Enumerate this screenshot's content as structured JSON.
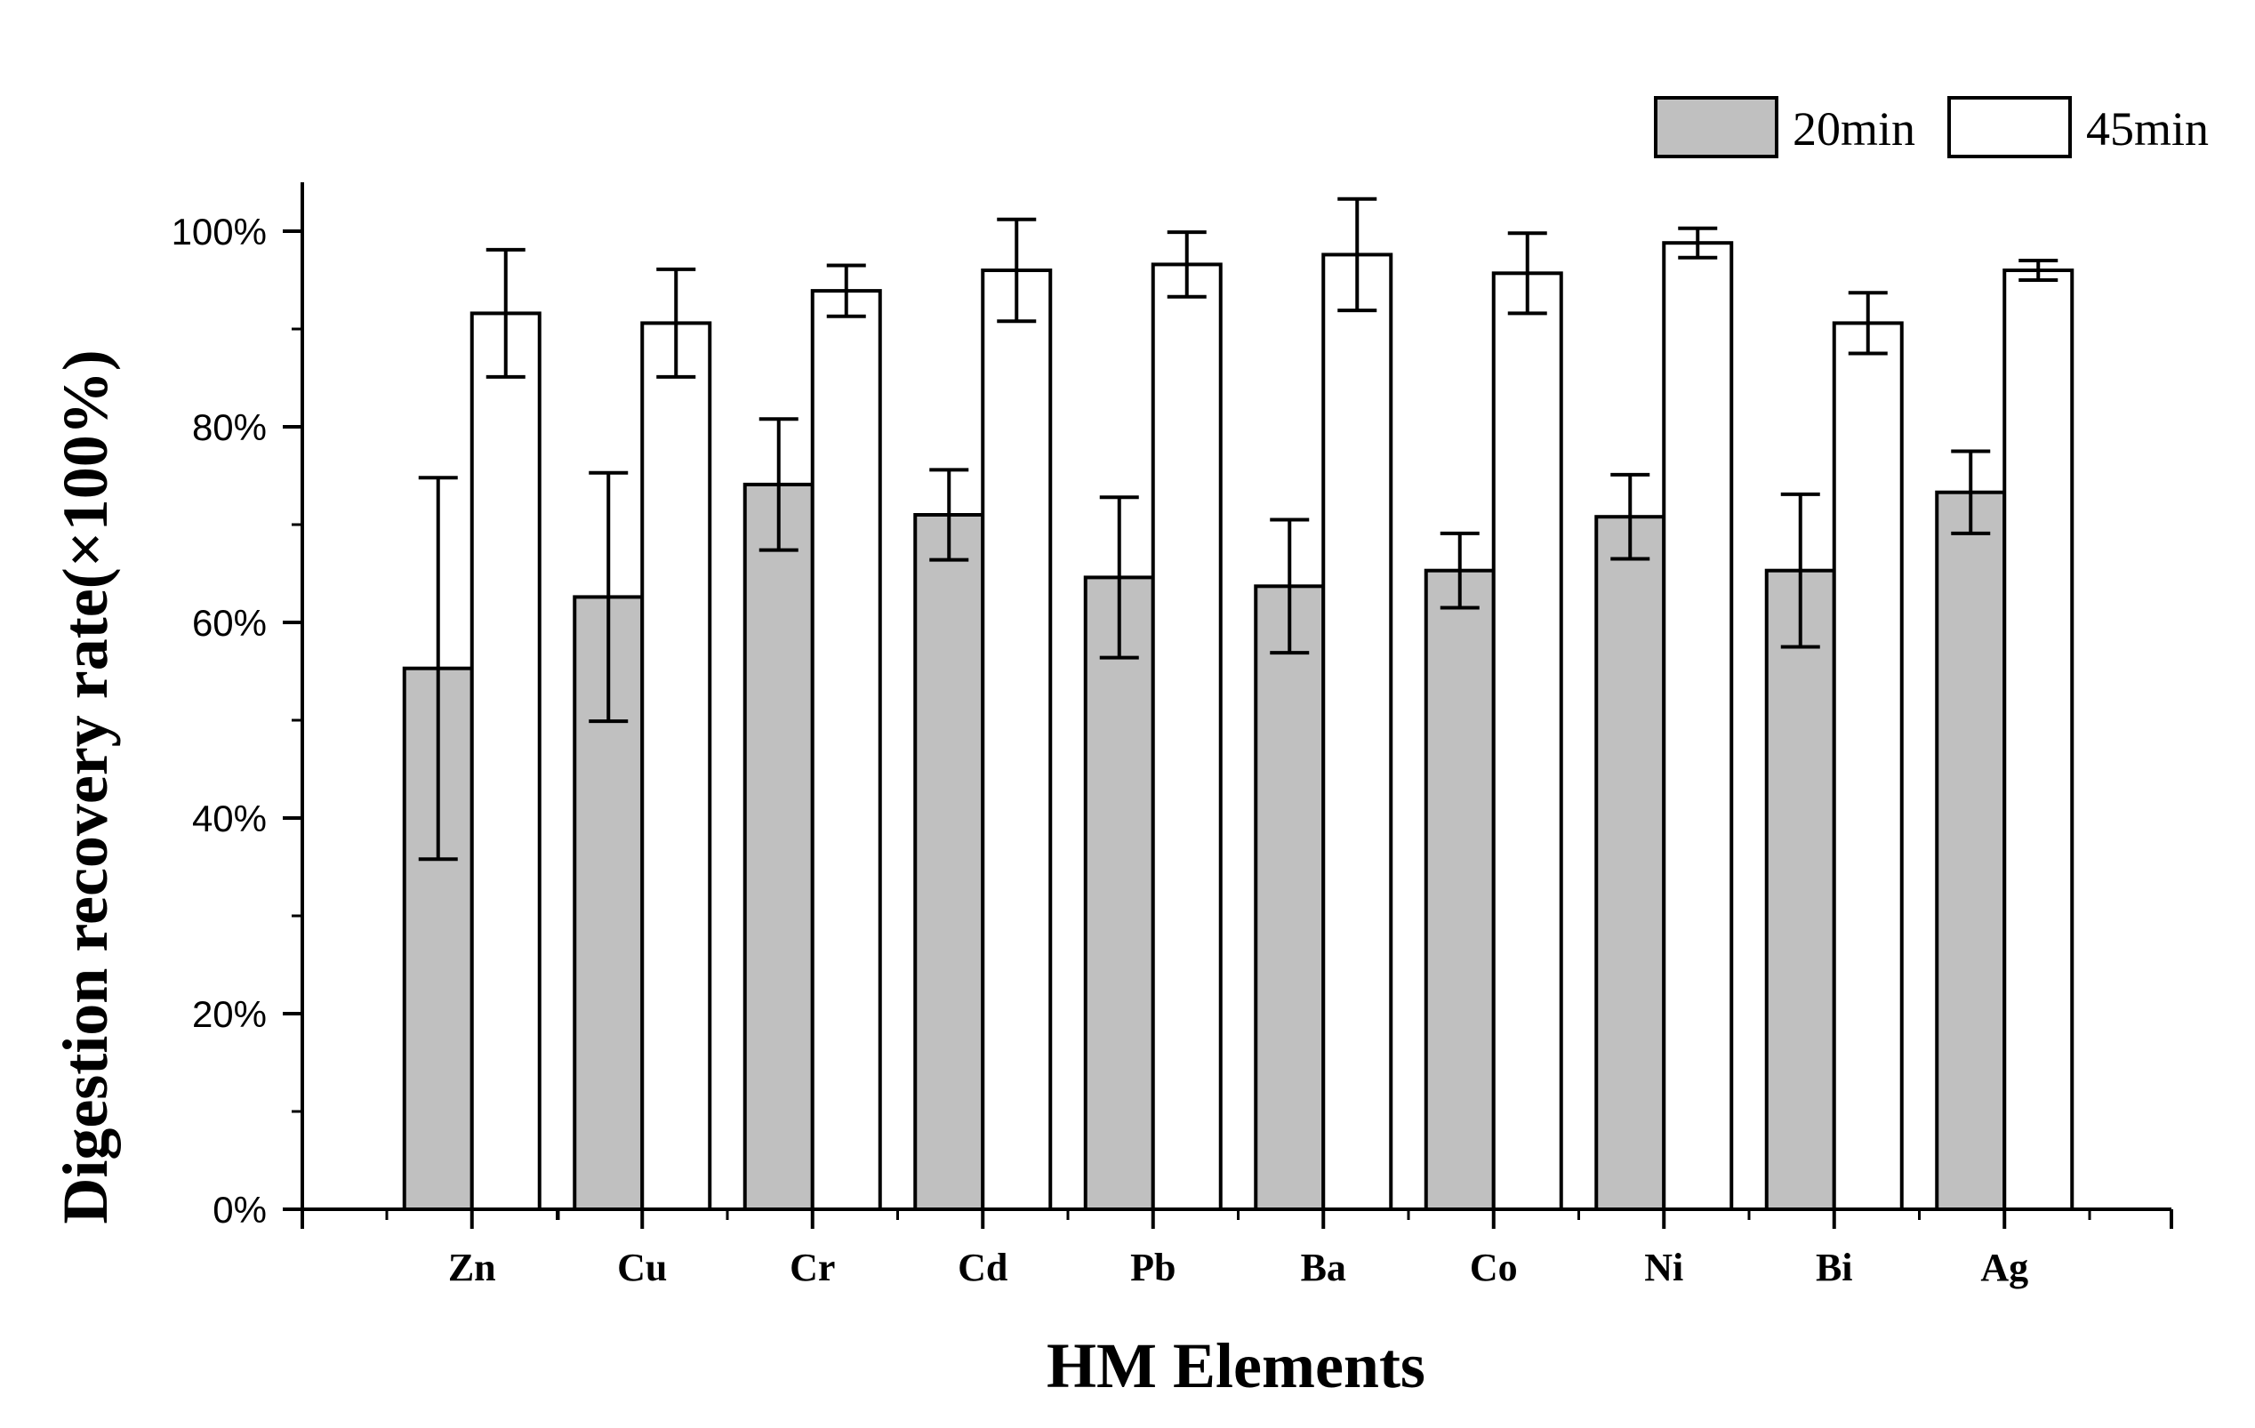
{
  "chart_data": {
    "type": "bar",
    "title": "",
    "xlabel": "HM Elements",
    "ylabel": "Digestion recovery rate(×100%)",
    "ylim": [
      0,
      1.05
    ],
    "y_ticks": [
      0,
      0.2,
      0.4,
      0.6,
      0.8,
      1.0
    ],
    "y_tick_labels": [
      "0%",
      "20%",
      "40%",
      "60%",
      "80%",
      "100%"
    ],
    "grid": false,
    "legend_position": "top-right",
    "categories": [
      "Zn",
      "Cu",
      "Cr",
      "Cd",
      "Pb",
      "Ba",
      "Co",
      "Ni",
      "Bi",
      "Ag"
    ],
    "series": [
      {
        "name": "20min",
        "color": "#c0c0c0",
        "values": [
          0.553,
          0.626,
          0.741,
          0.71,
          0.646,
          0.637,
          0.653,
          0.708,
          0.653,
          0.733
        ],
        "errors": [
          0.195,
          0.127,
          0.067,
          0.046,
          0.082,
          0.068,
          0.038,
          0.043,
          0.078,
          0.042
        ]
      },
      {
        "name": "45min",
        "color": "#ffffff",
        "values": [
          0.916,
          0.906,
          0.939,
          0.96,
          0.966,
          0.976,
          0.957,
          0.988,
          0.906,
          0.96
        ],
        "errors": [
          0.065,
          0.055,
          0.026,
          0.052,
          0.033,
          0.057,
          0.041,
          0.015,
          0.031,
          0.01
        ]
      }
    ]
  }
}
